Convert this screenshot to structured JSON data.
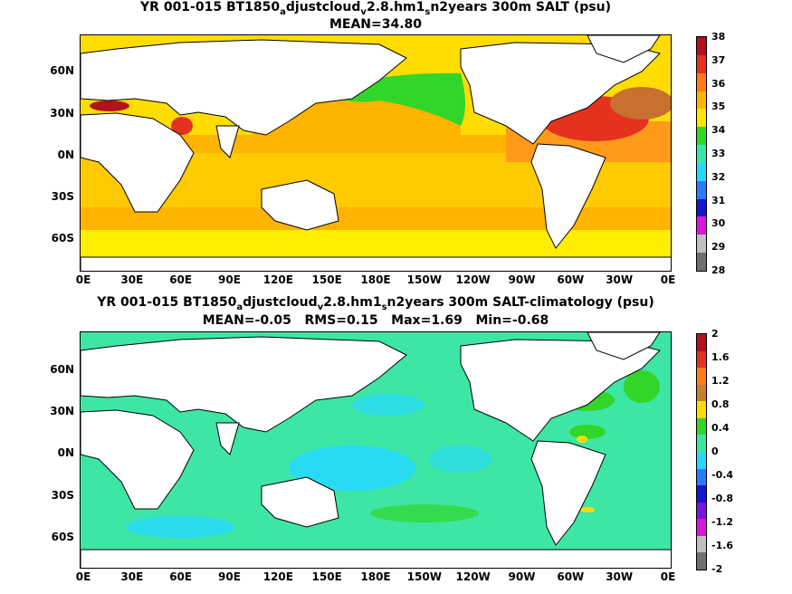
{
  "panel1": {
    "title_parts": [
      "YR 001-015 BT1850",
      "a",
      "djustcloud",
      "v",
      "2.8.hm1",
      "s",
      "n2years 300m SALT (psu)"
    ],
    "subtitle": "MEAN=34.80",
    "ocean_color": "#ffdd00",
    "colorbar": {
      "labels": [
        "38",
        "37",
        "36",
        "35",
        "34",
        "33",
        "32",
        "31",
        "30",
        "29",
        "28"
      ],
      "colors": [
        "#b0131c",
        "#e4321c",
        "#ff7d1a",
        "#ffb400",
        "#ffe600",
        "#31d628",
        "#38e8a8",
        "#25d8ff",
        "#2a7bff",
        "#1616d0",
        "#d916d9",
        "#c0c0c0",
        "#707070"
      ]
    }
  },
  "panel2": {
    "title_parts": [
      "YR 001-015 BT1850",
      "a",
      "djustcloud",
      "v",
      "2.8.hm1",
      "s",
      "n2years 300m SALT-climatology (psu)"
    ],
    "subtitle": "MEAN=-0.05   RMS=0.15   Max=1.69   Min=-0.68",
    "ocean_color": "#3ee6a6",
    "colorbar": {
      "labels": [
        "2",
        "1.6",
        "1.2",
        "0.8",
        "0.4",
        "0",
        "-0.4",
        "-0.8",
        "-1.2",
        "-1.6",
        "-2"
      ],
      "colors": [
        "#b0131c",
        "#e4321c",
        "#ff7d1a",
        "#c88030",
        "#ffdd00",
        "#31d628",
        "#3ee6a6",
        "#25d8ff",
        "#2a7bff",
        "#1616d0",
        "#7a16d9",
        "#d916d9",
        "#c0c0c0",
        "#707070"
      ]
    }
  },
  "x_ticks": [
    "0E",
    "30E",
    "60E",
    "90E",
    "120E",
    "150E",
    "180E",
    "150W",
    "120W",
    "90W",
    "60W",
    "30W",
    "0E"
  ],
  "y_ticks": [
    "60N",
    "30N",
    "0N",
    "30S",
    "60S"
  ]
}
